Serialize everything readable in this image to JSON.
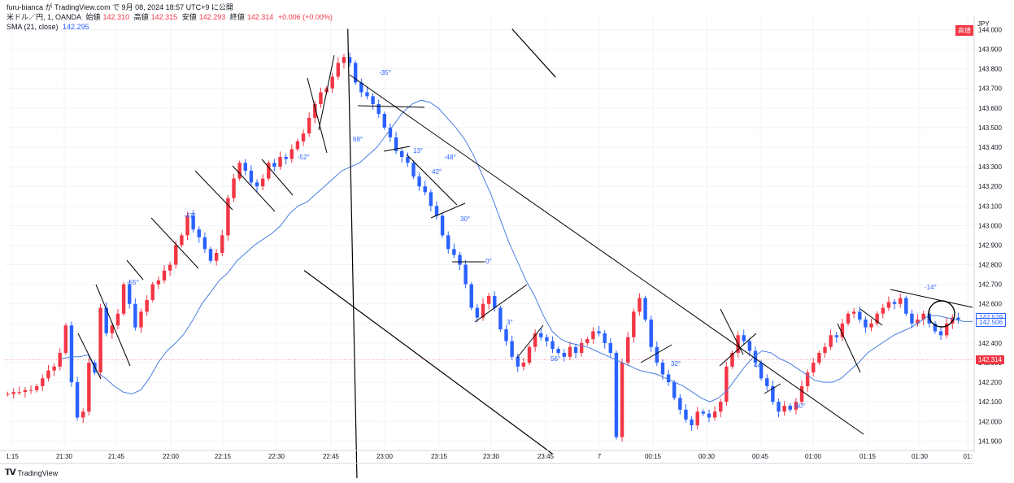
{
  "header": {
    "publisher": "furu-bianca が TradingView.com で 9月 08, 2024 18:57 UTC+9 に公開",
    "symbol": "米ドル／円, 1, OANDA",
    "open_label": "始値",
    "open": "142.310",
    "high_label": "高値",
    "high": "142.315",
    "low_label": "安値",
    "low": "142.293",
    "close_label": "終値",
    "close": "142.314",
    "change": "+0.006 (+0.00%)",
    "sma_label": "SMA (21, close)",
    "sma_value": "142.295"
  },
  "price_axis": {
    "currency": "JPY",
    "high_badge": "高値",
    "ticks": [
      "144.000",
      "143.900",
      "143.800",
      "143.700",
      "143.600",
      "143.500",
      "143.400",
      "143.300",
      "143.200",
      "143.100",
      "143.000",
      "142.900",
      "142.800",
      "142.700",
      "142.600",
      "142.500",
      "142.400",
      "142.300",
      "142.200",
      "142.100",
      "142.000",
      "141.900"
    ],
    "labels": [
      {
        "text": "142.529",
        "value": 142.529,
        "style": "blue-outline"
      },
      {
        "text": "142.506",
        "value": 142.506,
        "style": "blue-outline"
      },
      {
        "text": "142.314",
        "value": 142.314,
        "style": "red-fill"
      }
    ]
  },
  "time_axis": {
    "ticks": [
      "1:15",
      "21:30",
      "21:45",
      "22:00",
      "22:15",
      "22:30",
      "22:45",
      "23:00",
      "23:15",
      "23:30",
      "23:45",
      "7",
      "00:15",
      "00:30",
      "00:45",
      "01:00",
      "01:15",
      "01:30",
      "01:"
    ]
  },
  "angle_labels": [
    "-55°",
    "-47°",
    "-52°",
    "-35°",
    "68°",
    "13°",
    "-48°",
    "42°",
    "30°",
    "0°",
    "3°",
    "56°",
    "32°",
    "44°",
    "60°",
    "-14°"
  ],
  "branding": "TradingView",
  "colors": {
    "up": "#f23645",
    "down": "#2962ff",
    "sma": "#4a7ee0",
    "grid": "#f0f3fa"
  },
  "chart_data": {
    "type": "candlestick",
    "title": "米ドル／円, 1, OANDA",
    "ylim": [
      141.86,
      144.06
    ],
    "y_ticks": [
      144.0,
      143.9,
      143.8,
      143.7,
      143.6,
      143.5,
      143.4,
      143.3,
      143.2,
      143.1,
      143.0,
      142.9,
      142.8,
      142.7,
      142.6,
      142.5,
      142.4,
      142.3,
      142.2,
      142.1,
      142.0,
      141.9
    ],
    "path": [
      142.14,
      142.15,
      142.15,
      142.16,
      142.16,
      142.18,
      142.22,
      142.26,
      142.28,
      142.35,
      142.49,
      142.2,
      142.02,
      142.05,
      142.3,
      142.25,
      142.58,
      142.45,
      142.49,
      142.55,
      142.7,
      142.6,
      142.48,
      142.56,
      142.62,
      142.7,
      142.72,
      142.77,
      142.8,
      142.9,
      142.95,
      143.05,
      142.98,
      142.94,
      142.88,
      142.82,
      142.86,
      142.95,
      143.14,
      143.24,
      143.32,
      143.28,
      143.22,
      143.2,
      143.24,
      143.32,
      143.3,
      143.35,
      143.34,
      143.39,
      143.43,
      143.47,
      143.55,
      143.62,
      143.68,
      143.7,
      143.76,
      143.83,
      143.86,
      143.83,
      143.73,
      143.68,
      143.66,
      143.62,
      143.57,
      143.5,
      143.45,
      143.38,
      143.35,
      143.32,
      143.25,
      143.2,
      143.17,
      143.1,
      143.05,
      142.95,
      142.88,
      142.85,
      142.8,
      142.7,
      142.58,
      142.53,
      142.6,
      142.64,
      142.58,
      142.47,
      142.41,
      142.33,
      142.28,
      142.3,
      142.38,
      142.45,
      142.43,
      142.41,
      142.37,
      142.35,
      142.33,
      142.38,
      142.35,
      142.4,
      142.42,
      142.46,
      142.45,
      142.4,
      142.35,
      141.92,
      142.3,
      142.43,
      142.56,
      142.63,
      142.52,
      142.38,
      142.3,
      142.24,
      142.2,
      142.12,
      142.06,
      142.01,
      141.98,
      142.05,
      142.04,
      142.02,
      142.05,
      142.1,
      142.28,
      142.35,
      142.44,
      142.41,
      142.36,
      142.3,
      142.22,
      142.18,
      142.1,
      142.05,
      142.08,
      142.06,
      142.1,
      142.18,
      142.25,
      142.3,
      142.35,
      142.38,
      142.44,
      142.43,
      142.5,
      142.55,
      142.56,
      142.52,
      142.48,
      142.5,
      142.55,
      142.58,
      142.61,
      142.6,
      142.63,
      142.55,
      142.5,
      142.52,
      142.55,
      142.5,
      142.46,
      142.44,
      142.5,
      142.53,
      142.52
    ],
    "sma": [
      142.32,
      142.33,
      142.33,
      142.34,
      142.25,
      142.22,
      142.18,
      142.15,
      142.14,
      142.16,
      142.22,
      142.3,
      142.36,
      142.4,
      142.45,
      142.52,
      142.6,
      142.66,
      142.72,
      142.76,
      142.82,
      142.86,
      142.9,
      142.93,
      142.96,
      143.0,
      143.06,
      143.1,
      143.12,
      143.16,
      143.2,
      143.24,
      143.28,
      143.3,
      143.32,
      143.36,
      143.4,
      143.46,
      143.52,
      143.58,
      143.62,
      143.64,
      143.63,
      143.6,
      143.55,
      143.5,
      143.44,
      143.36,
      143.26,
      143.16,
      143.04,
      142.92,
      142.82,
      142.72,
      142.64,
      142.54,
      142.46,
      142.42,
      142.4,
      142.39,
      142.38,
      142.36,
      142.34,
      142.32,
      142.3,
      142.28,
      142.26,
      142.25,
      142.24,
      142.22,
      142.2,
      142.18,
      142.15,
      142.12,
      142.1,
      142.12,
      142.16,
      142.22,
      142.28,
      142.33,
      142.36,
      142.35,
      142.32,
      142.3,
      142.27,
      142.24,
      142.21,
      142.2,
      142.2,
      142.22,
      142.26,
      142.3,
      142.35,
      142.38,
      142.41,
      142.44,
      142.46,
      142.48,
      142.51,
      142.54,
      142.54,
      142.53,
      142.52,
      142.51,
      142.51
    ],
    "guides": [
      {
        "x1": 0.3,
        "y1": 0.56,
        "x2": 0.545,
        "y2": 0.94
      },
      {
        "x1": 0.505,
        "y1": 0.06,
        "x2": 0.548,
        "y2": 0.16
      },
      {
        "x1": 0.343,
        "y1": 0.06,
        "x2": 0.352,
        "y2": 0.99
      }
    ]
  }
}
